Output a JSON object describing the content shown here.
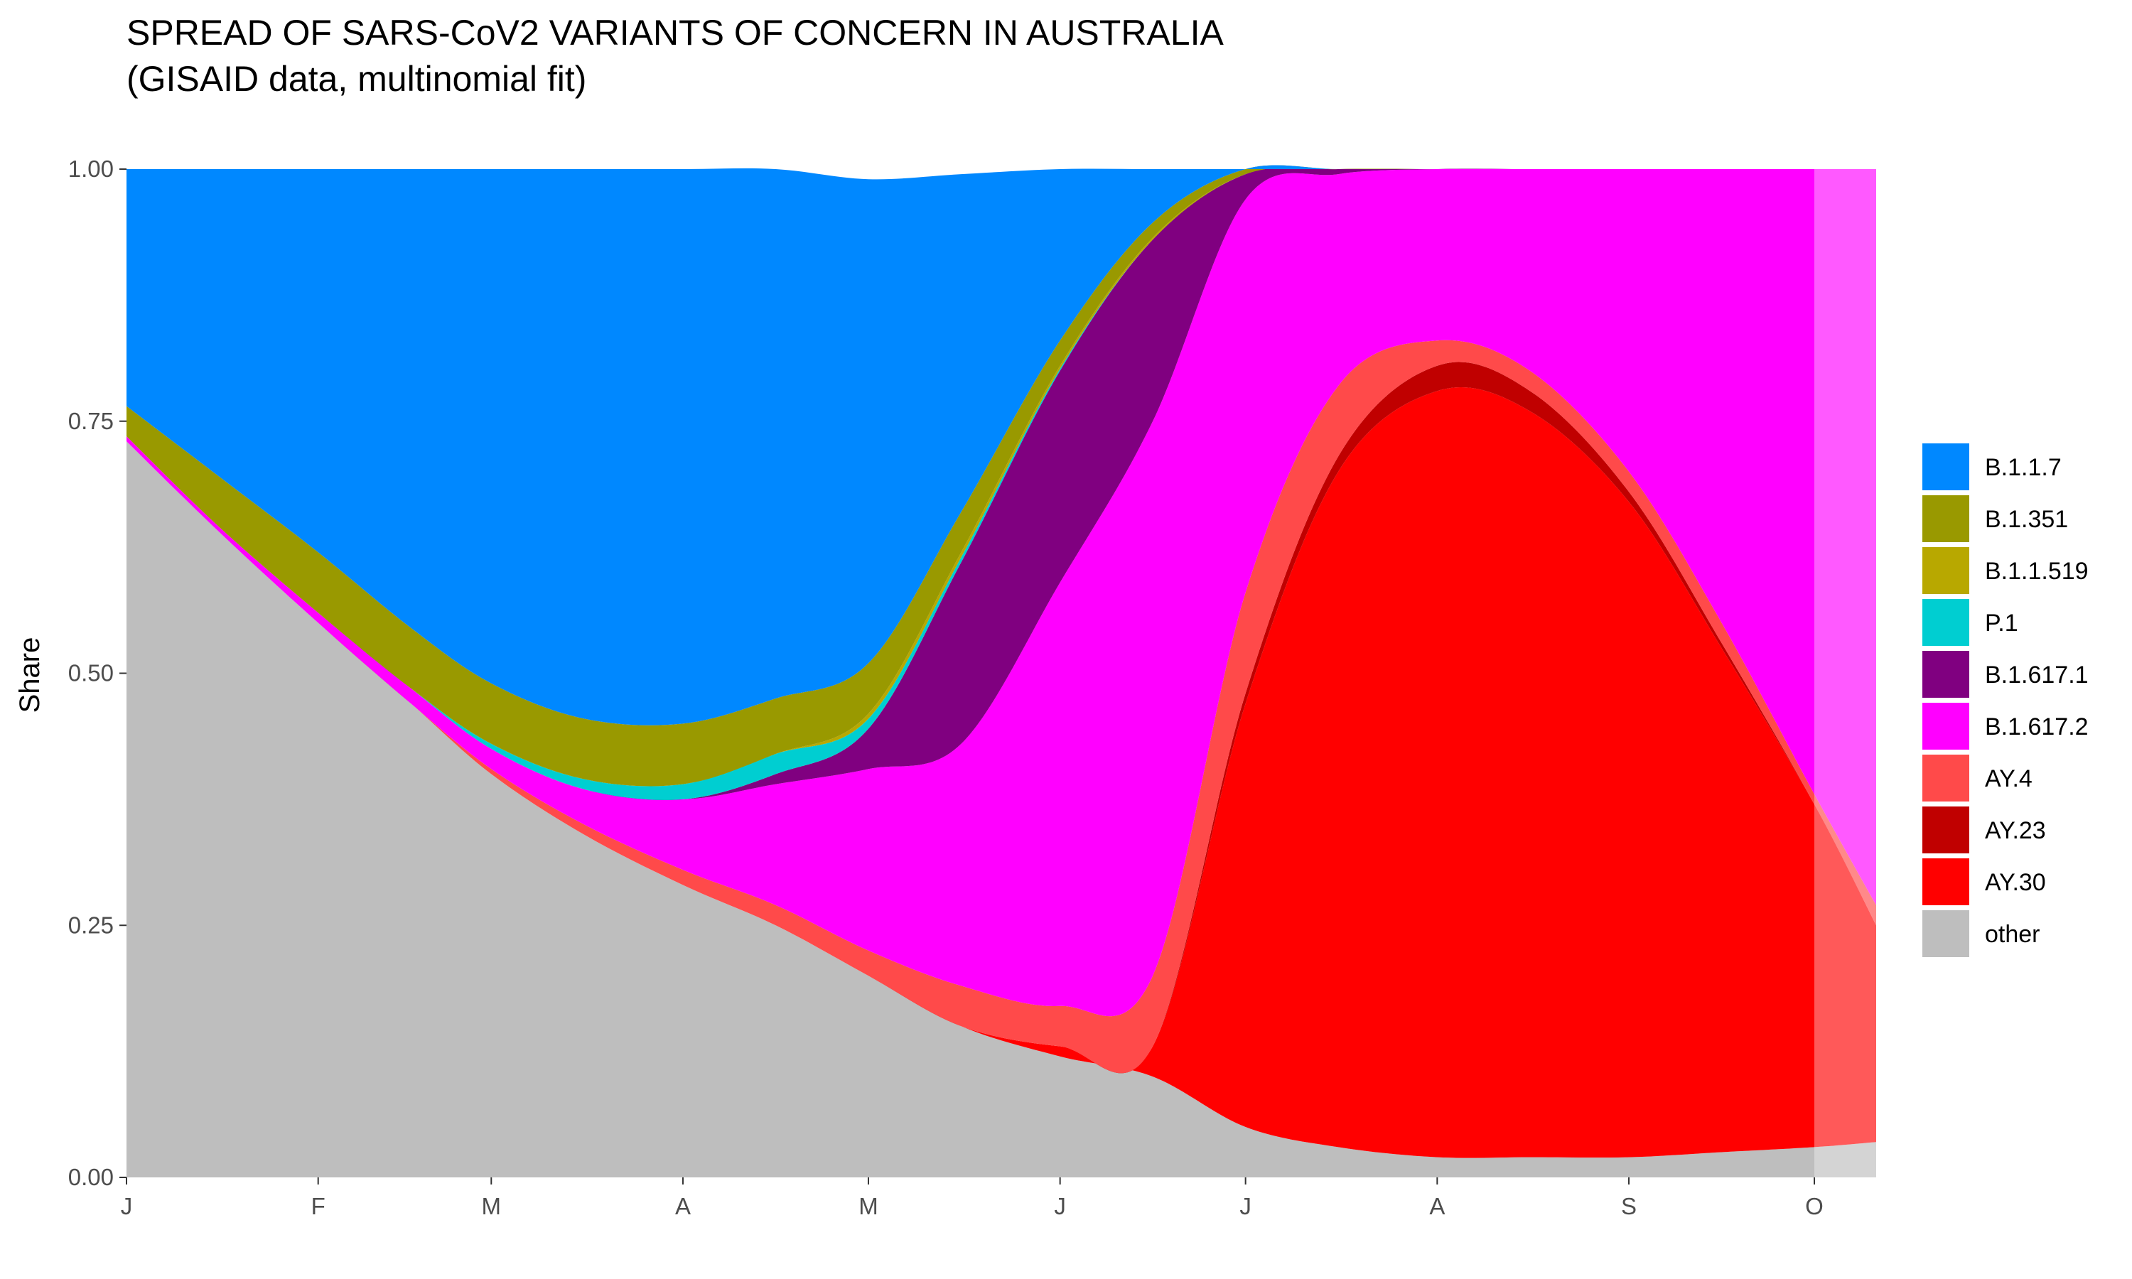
{
  "chart_data": {
    "type": "area",
    "stacked": true,
    "normalized": true,
    "title": "SPREAD OF SARS-CoV2 VARIANTS OF CONCERN IN AUSTRALIA",
    "subtitle": "(GISAID data, multinomial fit)",
    "xlabel": "",
    "ylabel": "Share",
    "ylim": [
      0,
      1
    ],
    "y_ticks": [
      "0.00",
      "0.25",
      "0.50",
      "0.75",
      "1.00"
    ],
    "x_ticks": [
      "J",
      "F",
      "M",
      "A",
      "M",
      "J",
      "J",
      "A",
      "S",
      "O"
    ],
    "x": [
      "Jan 1",
      "Jan 16",
      "Feb 1",
      "Feb 16",
      "Mar 1",
      "Mar 16",
      "Apr 1",
      "Apr 16",
      "May 1",
      "May 16",
      "Jun 1",
      "Jun 16",
      "Jul 1",
      "Jul 16",
      "Aug 1",
      "Aug 16",
      "Sep 1",
      "Sep 16",
      "Oct 1",
      "Oct 11"
    ],
    "projection_from": "Oct 1",
    "legend_position": "right",
    "grid": false,
    "series": [
      {
        "name": "other",
        "color": "#BEBEBE",
        "values": [
          0.73,
          0.64,
          0.55,
          0.47,
          0.4,
          0.34,
          0.29,
          0.25,
          0.2,
          0.15,
          0.12,
          0.1,
          0.05,
          0.03,
          0.02,
          0.02,
          0.02,
          0.025,
          0.03,
          0.035
        ]
      },
      {
        "name": "AY.30",
        "color": "#FF0000",
        "values": [
          0,
          0,
          0,
          0,
          0,
          0,
          0,
          0,
          0,
          0,
          0.01,
          0.03,
          0.42,
          0.67,
          0.76,
          0.74,
          0.65,
          0.5,
          0.34,
          0.215
        ]
      },
      {
        "name": "AY.23",
        "color": "#C00000",
        "values": [
          0,
          0,
          0,
          0,
          0,
          0,
          0,
          0,
          0,
          0,
          0,
          0,
          0.01,
          0.015,
          0.025,
          0.02,
          0.01,
          0.005,
          0,
          0
        ]
      },
      {
        "name": "AY.4",
        "color": "#FF4A4A",
        "values": [
          0,
          0,
          0,
          0,
          0.005,
          0.01,
          0.015,
          0.02,
          0.025,
          0.04,
          0.04,
          0.07,
          0.1,
          0.07,
          0.025,
          0.02,
          0.02,
          0.02,
          0.01,
          0.02
        ]
      },
      {
        "name": "B.1.617.2",
        "color": "#FF00FF",
        "values": [
          0.005,
          0.005,
          0.01,
          0.015,
          0.02,
          0.035,
          0.07,
          0.12,
          0.18,
          0.24,
          0.42,
          0.55,
          0.39,
          0.21,
          0.17,
          0.2,
          0.3,
          0.45,
          0.62,
          0.73
        ]
      },
      {
        "name": "B.1.617.1",
        "color": "#800080",
        "values": [
          0,
          0,
          0,
          0,
          0,
          0,
          0,
          0.01,
          0.04,
          0.18,
          0.21,
          0.18,
          0.025,
          0.005,
          0,
          0,
          0,
          0,
          0,
          0
        ]
      },
      {
        "name": "P.1",
        "color": "#00CED1",
        "values": [
          0,
          0,
          0,
          0,
          0.005,
          0.01,
          0.015,
          0.02,
          0.01,
          0.005,
          0.002,
          0,
          0,
          0,
          0,
          0,
          0,
          0,
          0,
          0
        ]
      },
      {
        "name": "B.1.1.519",
        "color": "#B8A800",
        "values": [
          0,
          0,
          0,
          0,
          0,
          0,
          0,
          0,
          0.005,
          0.005,
          0.003,
          0.002,
          0,
          0,
          0,
          0,
          0,
          0,
          0,
          0
        ]
      },
      {
        "name": "B.1.351",
        "color": "#999900",
        "values": [
          0.03,
          0.05,
          0.06,
          0.06,
          0.06,
          0.06,
          0.06,
          0.055,
          0.05,
          0.04,
          0.025,
          0.015,
          0.005,
          0,
          0,
          0,
          0,
          0,
          0,
          0
        ]
      },
      {
        "name": "B.1.1.7",
        "color": "#0088FF",
        "values": [
          0.235,
          0.305,
          0.38,
          0.455,
          0.51,
          0.545,
          0.55,
          0.525,
          0.48,
          0.335,
          0.17,
          0.053,
          0.0,
          0.0,
          0.0,
          0.0,
          0.0,
          0.0,
          0.0,
          0.0
        ]
      }
    ],
    "legend_order": [
      "B.1.1.7",
      "B.1.351",
      "B.1.1.519",
      "P.1",
      "B.1.617.1",
      "B.1.617.2",
      "AY.4",
      "AY.23",
      "AY.30",
      "other"
    ]
  }
}
